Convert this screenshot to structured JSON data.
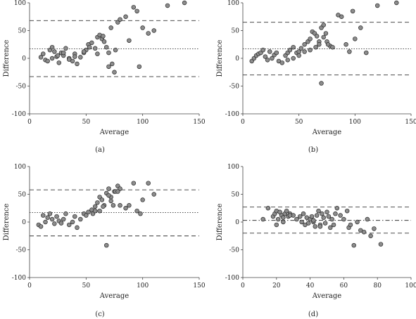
{
  "chart_data": [
    {
      "type": "scatter",
      "panel_label": "(a)",
      "xlabel": "Average",
      "ylabel": "Difference",
      "xlim": [
        0,
        150
      ],
      "ylim": [
        -100,
        100
      ],
      "xticks": [
        0,
        50,
        100,
        150
      ],
      "yticks": [
        -100,
        -50,
        0,
        50,
        100
      ],
      "lines": {
        "mean": 17,
        "upper": 68,
        "lower": -33
      },
      "x": [
        10,
        12,
        14,
        16,
        18,
        20,
        22,
        24,
        26,
        28,
        30,
        32,
        35,
        38,
        40,
        42,
        45,
        48,
        50,
        52,
        55,
        58,
        60,
        62,
        64,
        66,
        68,
        70,
        72,
        75,
        78,
        80,
        85,
        88,
        92,
        95,
        97,
        100,
        105,
        110,
        122,
        137,
        20,
        25,
        30,
        35,
        40,
        48,
        53,
        60,
        65,
        70,
        73,
        76
      ],
      "y": [
        2,
        8,
        -3,
        -5,
        15,
        20,
        12,
        3,
        -8,
        10,
        5,
        18,
        0,
        -5,
        8,
        -10,
        2,
        10,
        15,
        25,
        28,
        18,
        38,
        42,
        35,
        30,
        20,
        -15,
        55,
        -25,
        65,
        70,
        75,
        32,
        92,
        85,
        -15,
        55,
        45,
        50,
        95,
        100,
        0,
        5,
        10,
        -2,
        3,
        12,
        20,
        8,
        40,
        10,
        -10,
        15
      ]
    },
    {
      "type": "scatter",
      "panel_label": "(b)",
      "xlabel": "Average",
      "ylabel": "Difference",
      "xlim": [
        0,
        150
      ],
      "ylim": [
        -100,
        100
      ],
      "xticks": [
        0,
        50,
        100,
        150
      ],
      "yticks": [
        -100,
        -50,
        0,
        50,
        100
      ],
      "lines": {
        "mean": 17,
        "upper": 65,
        "lower": -30
      },
      "x": [
        8,
        10,
        12,
        14,
        16,
        18,
        20,
        22,
        24,
        26,
        28,
        30,
        32,
        35,
        38,
        40,
        42,
        45,
        48,
        50,
        52,
        55,
        58,
        60,
        62,
        64,
        66,
        68,
        70,
        72,
        75,
        78,
        80,
        85,
        88,
        92,
        95,
        98,
        100,
        105,
        110,
        120,
        137,
        40,
        45,
        50,
        55,
        60,
        65,
        68,
        70,
        72,
        74,
        76
      ],
      "y": [
        -5,
        0,
        5,
        8,
        10,
        15,
        3,
        -3,
        12,
        0,
        6,
        10,
        -5,
        -8,
        5,
        10,
        15,
        20,
        10,
        12,
        18,
        25,
        30,
        35,
        48,
        45,
        40,
        30,
        55,
        60,
        30,
        22,
        20,
        78,
        75,
        25,
        12,
        85,
        35,
        55,
        10,
        95,
        100,
        -3,
        0,
        5,
        12,
        15,
        20,
        25,
        -45,
        38,
        45,
        25
      ]
    },
    {
      "type": "scatter",
      "panel_label": "(c)",
      "xlabel": "Average",
      "ylabel": "Difference",
      "xlim": [
        0,
        150
      ],
      "ylim": [
        -100,
        100
      ],
      "xticks": [
        0,
        50,
        100,
        150
      ],
      "yticks": [
        -100,
        -50,
        0,
        50,
        100
      ],
      "lines": {
        "mean": 17,
        "upper": 58,
        "lower": -25
      },
      "x": [
        8,
        10,
        12,
        14,
        16,
        18,
        20,
        22,
        24,
        26,
        28,
        30,
        32,
        35,
        38,
        40,
        42,
        45,
        48,
        50,
        52,
        55,
        58,
        60,
        62,
        64,
        66,
        68,
        70,
        72,
        75,
        78,
        80,
        85,
        88,
        92,
        95,
        98,
        100,
        105,
        110,
        62,
        65,
        68,
        70,
        72,
        74,
        76,
        78,
        80,
        56,
        58
      ],
      "y": [
        -5,
        -8,
        12,
        0,
        8,
        15,
        5,
        -3,
        10,
        2,
        -2,
        5,
        15,
        -5,
        0,
        10,
        -10,
        5,
        15,
        12,
        18,
        22,
        28,
        35,
        45,
        40,
        30,
        52,
        60,
        45,
        55,
        65,
        60,
        25,
        30,
        70,
        20,
        15,
        40,
        70,
        50,
        20,
        28,
        -42,
        48,
        38,
        30,
        55,
        55,
        30,
        15,
        20
      ]
    },
    {
      "type": "scatter",
      "panel_label": "(d)",
      "xlabel": "Average",
      "ylabel": "Difference",
      "xlim": [
        0,
        100
      ],
      "ylim": [
        -100,
        100
      ],
      "xticks": [
        0,
        20,
        40,
        60,
        80,
        100
      ],
      "yticks": [
        -100,
        -50,
        0,
        50,
        100
      ],
      "lines": {
        "mean": 3,
        "upper": 27,
        "lower": -20
      },
      "x": [
        12,
        15,
        18,
        19,
        20,
        21,
        22,
        23,
        24,
        25,
        26,
        27,
        28,
        30,
        32,
        34,
        35,
        36,
        37,
        38,
        39,
        40,
        41,
        42,
        43,
        44,
        45,
        46,
        47,
        48,
        49,
        50,
        51,
        52,
        53,
        54,
        55,
        56,
        58,
        60,
        62,
        63,
        64,
        66,
        68,
        70,
        72,
        74,
        76,
        78,
        82,
        20,
        24,
        28,
        42,
        46
      ],
      "y": [
        5,
        25,
        10,
        15,
        20,
        5,
        18,
        12,
        8,
        15,
        20,
        10,
        15,
        12,
        5,
        10,
        0,
        15,
        -5,
        8,
        -2,
        5,
        10,
        0,
        -8,
        12,
        20,
        -5,
        15,
        8,
        -2,
        18,
        10,
        -10,
        5,
        -5,
        15,
        25,
        12,
        5,
        20,
        -10,
        -5,
        -42,
        0,
        -15,
        -18,
        5,
        -25,
        -12,
        -40,
        -5,
        0,
        12,
        3,
        -8
      ]
    }
  ]
}
